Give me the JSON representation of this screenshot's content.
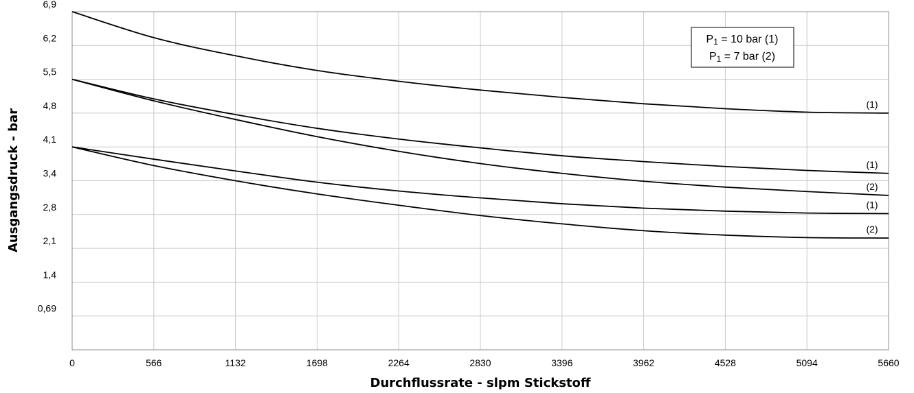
{
  "chart_data": {
    "type": "line",
    "xlabel": "Durchflussrate - slpm Stickstoff",
    "ylabel": "Ausgangsdruck - bar",
    "xlim": [
      0,
      5660
    ],
    "ylim": [
      0,
      6.9
    ],
    "grid": true,
    "x_ticks": [
      "0",
      "566",
      "1132",
      "1698",
      "2264",
      "2830",
      "3396",
      "3962",
      "4528",
      "5094",
      "5660"
    ],
    "y_ticks": [
      {
        "value": 0.69,
        "label": "0,69"
      },
      {
        "value": 1.38,
        "label": "1,4"
      },
      {
        "value": 2.07,
        "label": "2,1"
      },
      {
        "value": 2.76,
        "label": "2,8"
      },
      {
        "value": 3.45,
        "label": "3,4"
      },
      {
        "value": 4.14,
        "label": "4,1"
      },
      {
        "value": 4.83,
        "label": "4,8"
      },
      {
        "value": 5.52,
        "label": "5,5"
      },
      {
        "value": 6.21,
        "label": "6,2"
      },
      {
        "value": 6.9,
        "label": "6,9"
      }
    ],
    "legend": {
      "position": "top-right",
      "entries": [
        {
          "prefix": "P",
          "sub": "1",
          "text": " = 10 bar (1)"
        },
        {
          "prefix": "P",
          "sub": "1",
          "text": " = 7 bar (2)"
        }
      ]
    },
    "series": [
      {
        "label": "(1)",
        "x": [
          0,
          566,
          1132,
          1698,
          2264,
          2830,
          3396,
          3962,
          4528,
          5094,
          5660
        ],
        "y": [
          6.9,
          6.37,
          6.0,
          5.7,
          5.48,
          5.3,
          5.15,
          5.02,
          4.92,
          4.85,
          4.83
        ]
      },
      {
        "label": "(1)",
        "x": [
          0,
          566,
          1132,
          1698,
          2264,
          2830,
          3396,
          3962,
          4528,
          5094,
          5660
        ],
        "y": [
          5.52,
          5.12,
          4.8,
          4.52,
          4.3,
          4.12,
          3.96,
          3.84,
          3.74,
          3.66,
          3.6
        ]
      },
      {
        "label": "(2)",
        "x": [
          0,
          566,
          1132,
          1698,
          2264,
          2830,
          3396,
          3962,
          4528,
          5094,
          5660
        ],
        "y": [
          5.52,
          5.08,
          4.7,
          4.35,
          4.05,
          3.8,
          3.6,
          3.44,
          3.32,
          3.23,
          3.15
        ]
      },
      {
        "label": "(1)",
        "x": [
          0,
          566,
          1132,
          1698,
          2264,
          2830,
          3396,
          3962,
          4528,
          5094,
          5660
        ],
        "y": [
          4.14,
          3.89,
          3.65,
          3.42,
          3.24,
          3.1,
          2.98,
          2.89,
          2.83,
          2.79,
          2.78
        ]
      },
      {
        "label": "(2)",
        "x": [
          0,
          566,
          1132,
          1698,
          2264,
          2830,
          3396,
          3962,
          4528,
          5094,
          5660
        ],
        "y": [
          4.14,
          3.76,
          3.45,
          3.18,
          2.95,
          2.74,
          2.57,
          2.43,
          2.34,
          2.29,
          2.28
        ]
      }
    ]
  }
}
